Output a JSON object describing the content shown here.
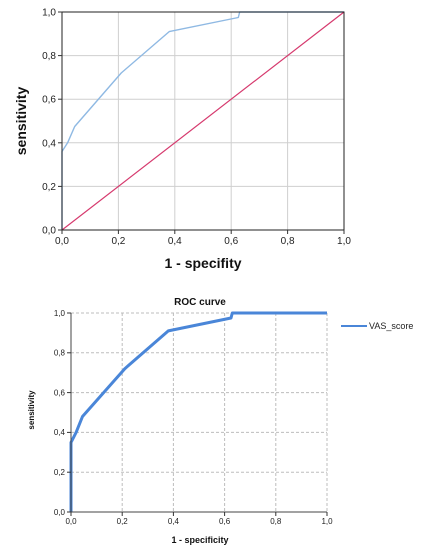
{
  "chart_data": [
    {
      "type": "line",
      "title": "",
      "xlabel": "1 - specifity",
      "ylabel": "sensitivity",
      "xlim": [
        0,
        1
      ],
      "ylim": [
        0,
        1
      ],
      "x_ticks": [
        "0,0",
        "0,2",
        "0,4",
        "0,6",
        "0,8",
        "1,0"
      ],
      "y_ticks": [
        "0,0",
        "0,2",
        "0,4",
        "0,6",
        "0,8",
        "1,0"
      ],
      "grid": "solid",
      "legend": "none",
      "series": [
        {
          "role": "roc-curve",
          "color": "#8fb9e3",
          "x": [
            0,
            0,
            0,
            0.02,
            0.045,
            0.21,
            0.38,
            0.625,
            0.63,
            1.0
          ],
          "y": [
            0,
            0.2,
            0.36,
            0.4,
            0.475,
            0.72,
            0.91,
            0.975,
            1.0,
            1.0
          ]
        },
        {
          "role": "reference-line",
          "color": "#d63a6e",
          "x": [
            0,
            1
          ],
          "y": [
            0,
            1
          ]
        }
      ]
    },
    {
      "type": "line",
      "title": "ROC curve",
      "xlabel": "1 - specificity",
      "ylabel": "sensitivity",
      "xlim": [
        0,
        1
      ],
      "ylim": [
        0,
        1
      ],
      "x_ticks": [
        "0,0",
        "0,2",
        "0,4",
        "0,6",
        "0,8",
        "1,0"
      ],
      "y_ticks": [
        "0,0",
        "0,2",
        "0,4",
        "0,6",
        "0,8",
        "1,0"
      ],
      "grid": "dashed",
      "legend": "right",
      "series": [
        {
          "name": "VAS_score",
          "color": "#4a86d8",
          "x": [
            0,
            0,
            0,
            0.02,
            0.045,
            0.21,
            0.38,
            0.625,
            0.63,
            1.0
          ],
          "y": [
            0,
            0.2,
            0.35,
            0.4,
            0.48,
            0.72,
            0.91,
            0.975,
            1.0,
            1.0
          ]
        }
      ]
    }
  ]
}
